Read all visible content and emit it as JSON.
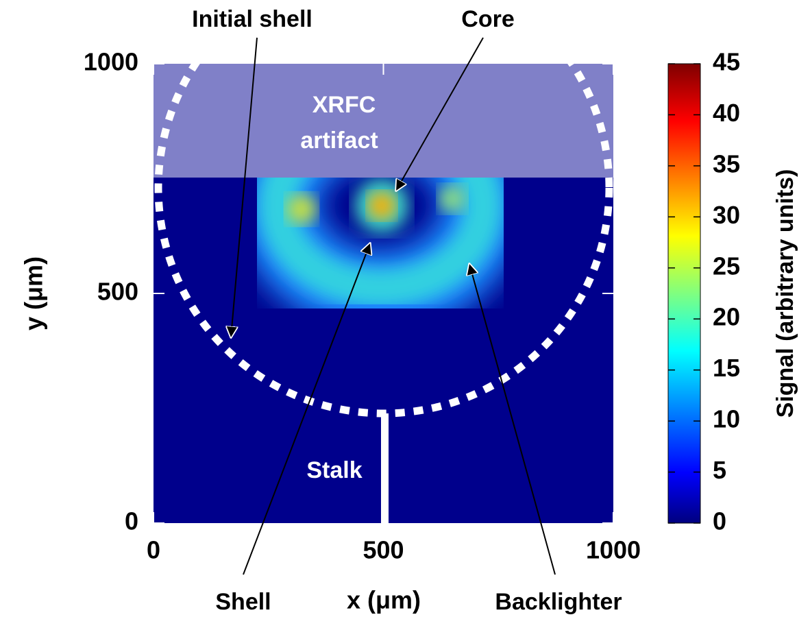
{
  "chart_data": {
    "type": "heatmap",
    "xlabel": "x (μm)",
    "ylabel": "y (μm)",
    "xlim": [
      0,
      1000
    ],
    "ylim": [
      0,
      1000
    ],
    "xticks": [
      0,
      500,
      1000
    ],
    "yticks": [
      0,
      500,
      1000
    ],
    "colorbar": {
      "label": "Signal (arbitrary units)",
      "lim": [
        0,
        45
      ],
      "ticks": [
        0,
        5,
        10,
        15,
        20,
        25,
        30,
        35,
        40,
        45
      ],
      "colormap": "jet"
    },
    "annotations": [
      {
        "text": "Initial shell"
      },
      {
        "text": "Core"
      },
      {
        "text": "Shell"
      },
      {
        "text": "Backlighter"
      },
      {
        "text": "Stalk"
      },
      {
        "lines": [
          "XRFC",
          "artifact"
        ]
      }
    ]
  }
}
